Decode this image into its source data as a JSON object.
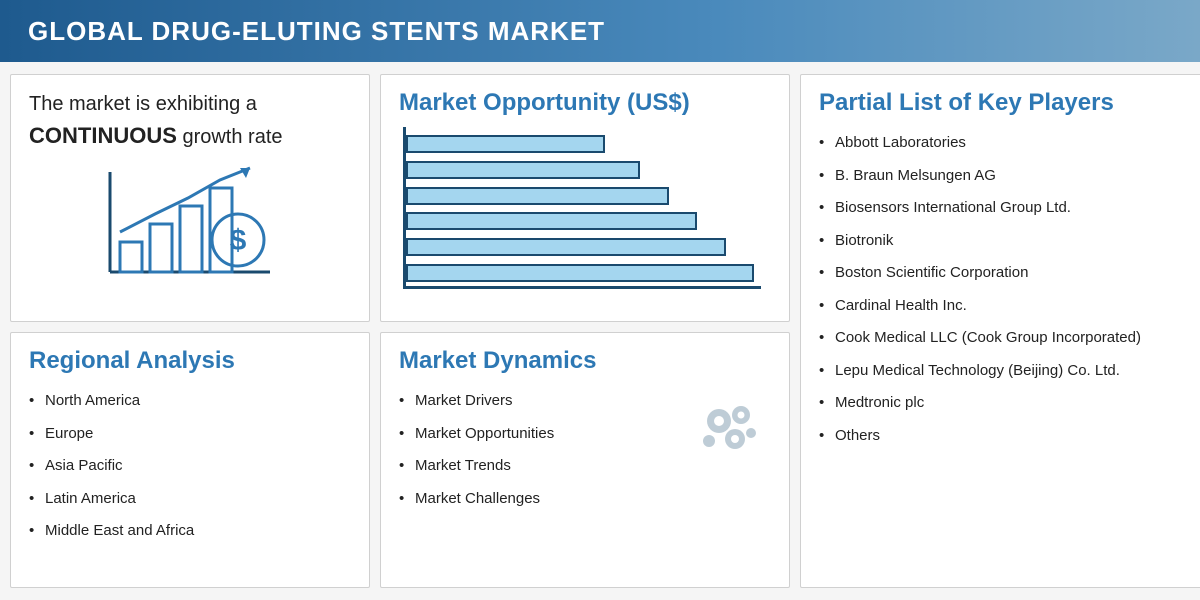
{
  "colors": {
    "title_blue": "#2d78b4",
    "axis_color": "#1a4a6e",
    "bar_fill": "#a4d6ef",
    "bar_stroke": "#1a4a6e",
    "icon_blue": "#2d78b4",
    "icon_blue_dark": "#1a4a6e",
    "bullet_text": "#222222"
  },
  "header": {
    "title": "GLOBAL DRUG-ELUTING STENTS MARKET"
  },
  "growth": {
    "line1": "The market is exhibiting a",
    "strong": "CONTINUOUS",
    "line2_suffix": " growth rate"
  },
  "opportunity": {
    "title": "Market Opportunity (US$)",
    "chart": {
      "type": "horizontal-bar",
      "bar_percents": [
        56,
        66,
        74,
        82,
        90,
        98
      ],
      "bar_fill": "#a4d6ef",
      "bar_stroke": "#1a4a6e",
      "axis_color": "#1a4a6e"
    }
  },
  "regional": {
    "title": "Regional Analysis",
    "items": [
      "North America",
      "Europe",
      "Asia Pacific",
      "Latin America",
      "Middle East and Africa"
    ]
  },
  "dynamics": {
    "title": "Market Dynamics",
    "items": [
      "Market Drivers",
      "Market Opportunities",
      "Market Trends",
      "Market Challenges"
    ]
  },
  "players": {
    "title": "Partial List of Key Players",
    "items": [
      "Abbott Laboratories",
      "B. Braun Melsungen AG",
      "Biosensors International Group Ltd.",
      "Biotronik",
      "Boston Scientific Corporation",
      "Cardinal Health Inc.",
      "Cook Medical LLC (Cook Group Incorporated)",
      "Lepu Medical Technology (Beijing) Co. Ltd.",
      "Medtronic plc",
      "Others"
    ]
  }
}
